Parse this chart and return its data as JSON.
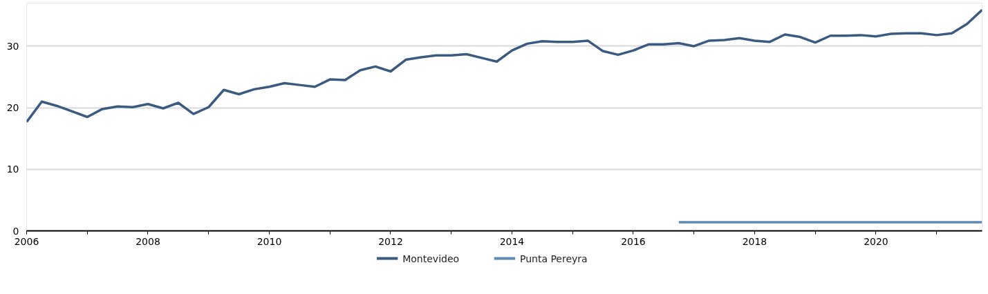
{
  "chart_data": {
    "type": "line",
    "x": [
      2006.0,
      2006.25,
      2006.5,
      2006.75,
      2007.0,
      2007.25,
      2007.5,
      2007.75,
      2008.0,
      2008.25,
      2008.5,
      2008.75,
      2009.0,
      2009.25,
      2009.5,
      2009.75,
      2010.0,
      2010.25,
      2010.5,
      2010.75,
      2011.0,
      2011.25,
      2011.5,
      2011.75,
      2012.0,
      2012.25,
      2012.5,
      2012.75,
      2013.0,
      2013.25,
      2013.5,
      2013.75,
      2014.0,
      2014.25,
      2014.5,
      2014.75,
      2015.0,
      2015.25,
      2015.5,
      2015.75,
      2016.0,
      2016.25,
      2016.5,
      2016.75,
      2017.0,
      2017.25,
      2017.5,
      2017.75,
      2018.0,
      2018.25,
      2018.5,
      2018.75,
      2019.0,
      2019.25,
      2019.5,
      2019.75,
      2020.0,
      2020.25,
      2020.5,
      2020.75,
      2021.0,
      2021.25,
      2021.5,
      2021.75
    ],
    "series": [
      {
        "name": "Montevideo",
        "color": "#3b5a80",
        "values": [
          17.7,
          21.0,
          20.3,
          19.4,
          18.5,
          19.8,
          20.2,
          20.1,
          20.6,
          19.9,
          20.8,
          19.0,
          20.1,
          22.9,
          22.2,
          23.0,
          23.4,
          24.0,
          23.7,
          23.4,
          24.6,
          24.5,
          26.1,
          26.7,
          25.9,
          27.8,
          28.2,
          28.5,
          28.5,
          28.7,
          28.1,
          27.5,
          29.3,
          30.4,
          30.8,
          30.7,
          30.7,
          30.9,
          29.2,
          28.6,
          29.3,
          30.3,
          30.3,
          30.5,
          30.0,
          30.9,
          31.0,
          31.3,
          30.9,
          30.7,
          31.9,
          31.5,
          30.6,
          31.7,
          31.7,
          31.8,
          31.6,
          32.0,
          32.1,
          32.1,
          31.8,
          32.1,
          33.6,
          35.9
        ]
      },
      {
        "name": "Punta Pereyra",
        "color": "#5b8bb5",
        "x": [
          2016.75,
          2021.75
        ],
        "values": [
          1.4,
          1.4
        ]
      }
    ],
    "xlim": [
      2006,
      2021.75
    ],
    "xticks": [
      2006,
      {
        "value": 2007,
        "label": null
      },
      2008,
      {
        "value": 2009,
        "label": null
      },
      2010,
      {
        "value": 2011,
        "label": null
      },
      2012,
      {
        "value": 2013,
        "label": null
      },
      2014,
      {
        "value": 2015,
        "label": null
      },
      2016,
      {
        "value": 2017,
        "label": null
      },
      2018,
      {
        "value": 2019,
        "label": null
      },
      2020,
      {
        "value": 2021,
        "label": null
      }
    ],
    "ylim": [
      0,
      37
    ],
    "yticks": [
      0,
      10,
      20,
      30
    ],
    "grid": "y",
    "legend": "bottom",
    "line_style": "solid",
    "marker": "none"
  }
}
